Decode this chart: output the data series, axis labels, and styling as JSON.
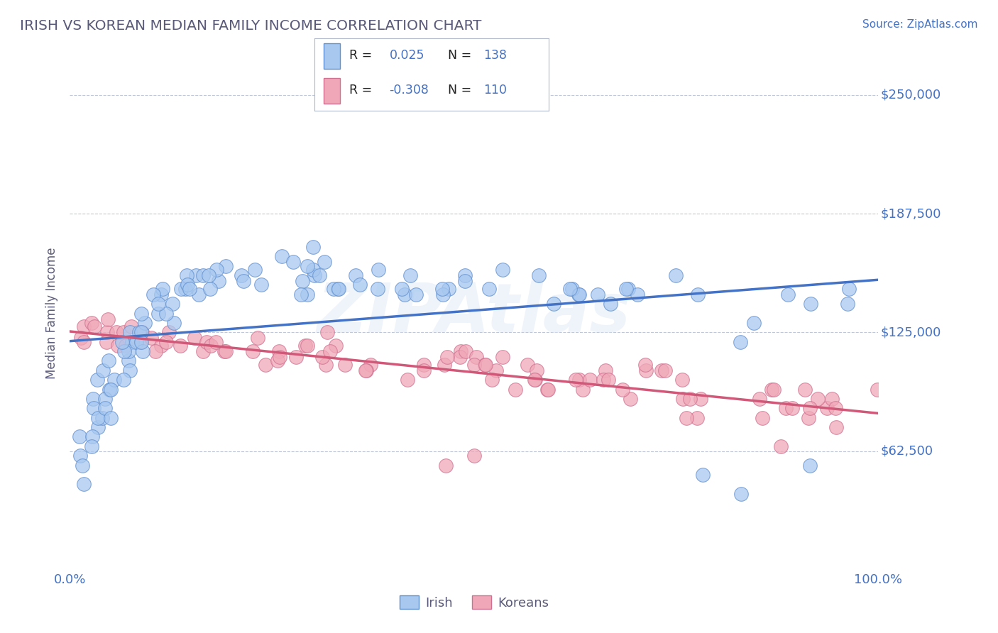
{
  "title": "IRISH VS KOREAN MEDIAN FAMILY INCOME CORRELATION CHART",
  "source": "Source: ZipAtlas.com",
  "ylabel": "Median Family Income",
  "yticks": [
    0,
    62500,
    125000,
    187500,
    250000
  ],
  "ytick_labels": [
    "",
    "$62,500",
    "$125,000",
    "$187,500",
    "$250,000"
  ],
  "xtick_labels": [
    "0.0%",
    "100.0%"
  ],
  "xlim": [
    0.0,
    1.0
  ],
  "ylim": [
    0,
    270000
  ],
  "irish_color": "#a8c8f0",
  "korean_color": "#f0a8b8",
  "irish_edge_color": "#6090d0",
  "korean_edge_color": "#d07090",
  "irish_line_color": "#4472c4",
  "korean_line_color": "#d05878",
  "watermark": "ZIPAtlas",
  "title_color": "#5a5a7a",
  "axis_color": "#4472c4",
  "grid_color": "#c0c8d8",
  "background_color": "#ffffff",
  "legend_box_color": "#e8ecf8",
  "irish_line_y0": 122000,
  "irish_line_y1": 127000,
  "korean_line_y0": 130000,
  "korean_line_y1": 95000
}
